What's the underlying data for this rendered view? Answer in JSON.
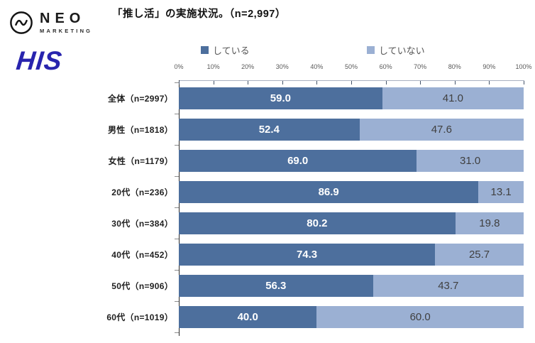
{
  "header": {
    "title": "「推し活」の実施状況。（n=2,997）",
    "neo_logo": {
      "name": "NEO",
      "subtitle": "MARKETING",
      "icon": "pulse-circle-icon",
      "color": "#1a1a1a"
    },
    "his_logo": {
      "text": "HIS",
      "color": "#2824ae"
    }
  },
  "chart_data": {
    "type": "bar",
    "orientation": "horizontal-stacked",
    "title": "「推し活」の実施状況。（n=2,997）",
    "categories": [
      "全体（n=2997）",
      "男性（n=1818）",
      "女性（n=1179）",
      "20代（n=236）",
      "30代（n=384）",
      "40代（n=452）",
      "50代（n=906）",
      "60代（n=1019）"
    ],
    "series": [
      {
        "name": "している",
        "color": "#4d6f9d",
        "label_color": "#ffffff",
        "values": [
          59.0,
          52.4,
          69.0,
          86.9,
          80.2,
          74.3,
          56.3,
          40.0
        ]
      },
      {
        "name": "していない",
        "color": "#9bb0d3",
        "label_color": "#404040",
        "values": [
          41.0,
          47.6,
          31.0,
          13.1,
          19.8,
          25.7,
          43.7,
          60.0
        ]
      }
    ],
    "x_axis": {
      "min": 0,
      "max": 100,
      "tick_step": 10,
      "tick_labels": [
        "0%",
        "10%",
        "20%",
        "30%",
        "40%",
        "50%",
        "60%",
        "70%",
        "80%",
        "90%",
        "100%"
      ]
    },
    "value_format": "one_decimal",
    "legend_position": "top",
    "grid": false
  }
}
